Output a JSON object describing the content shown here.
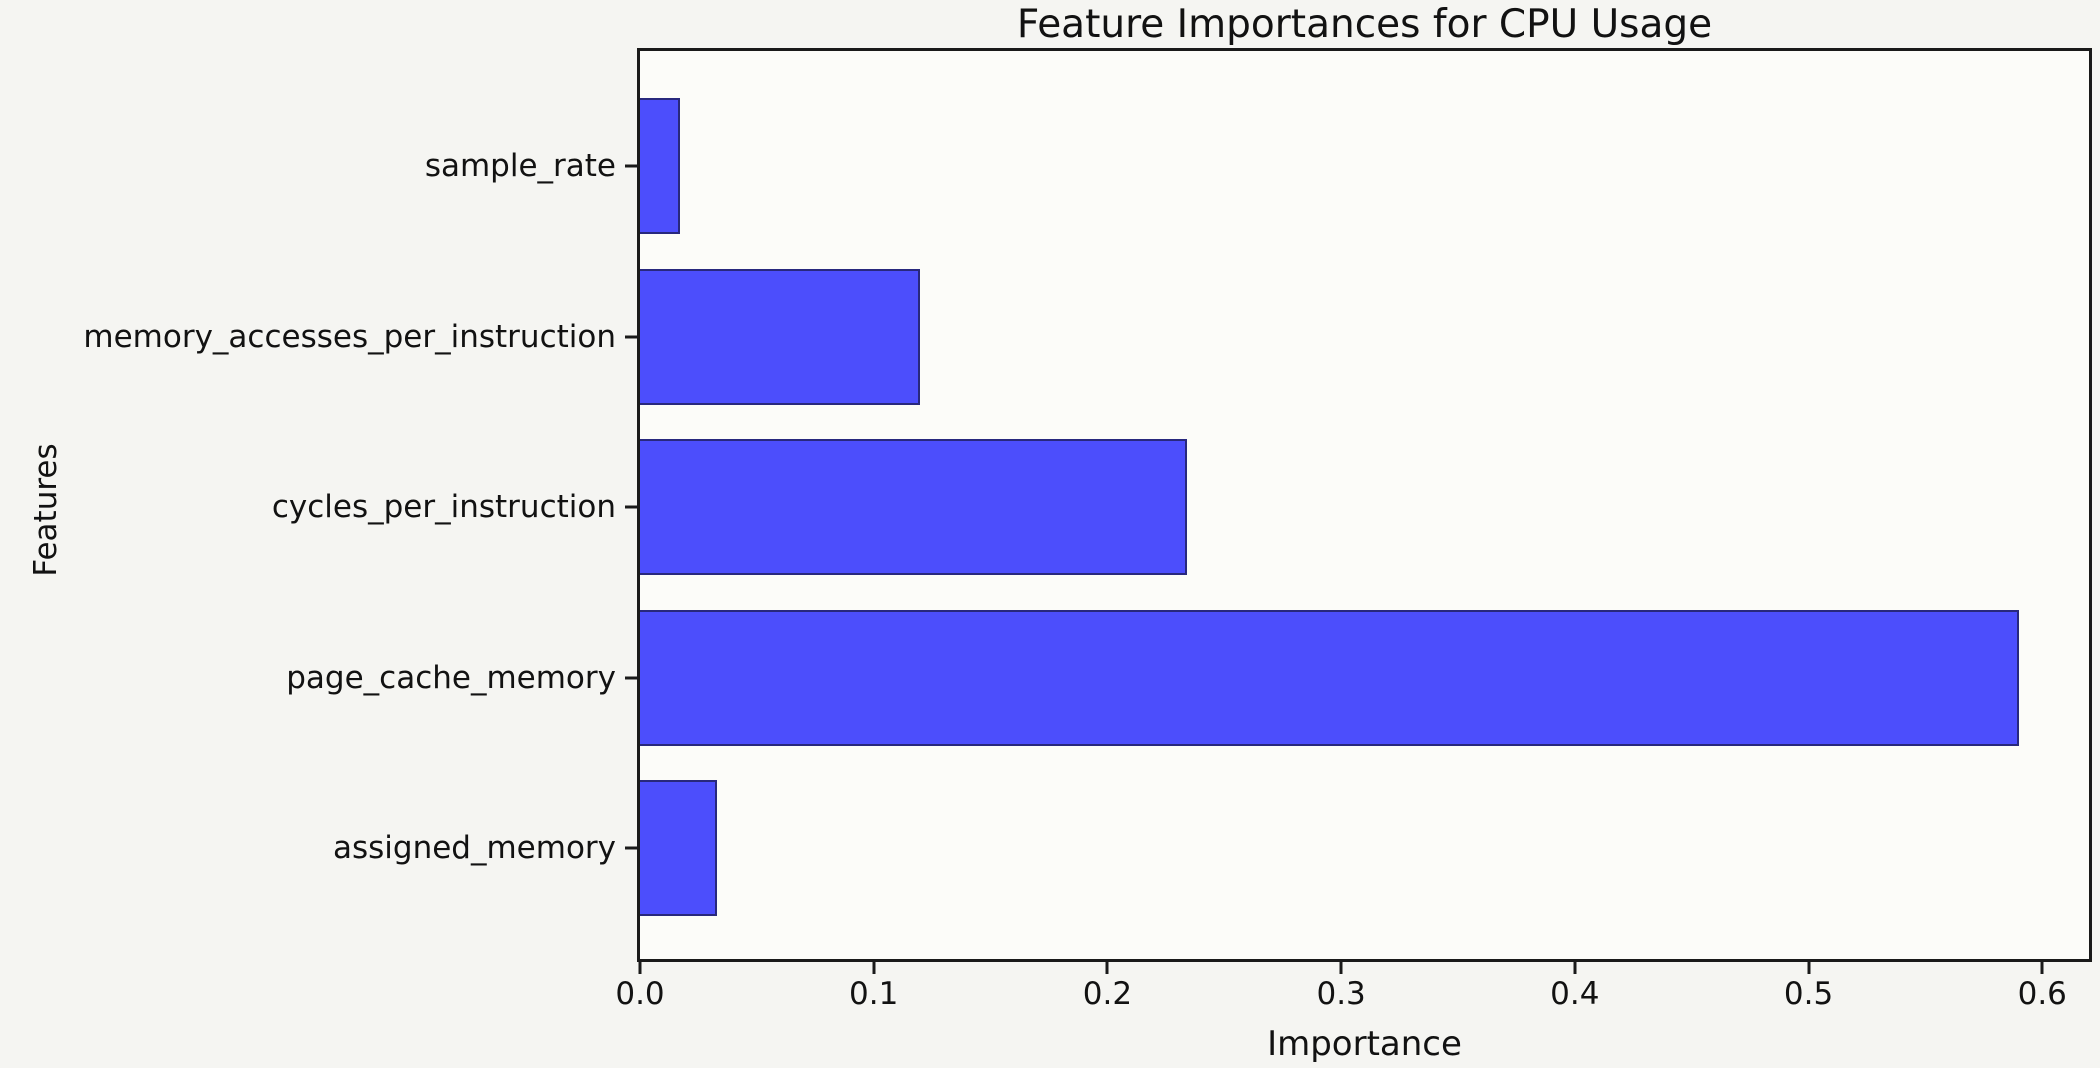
{
  "chart_data": {
    "type": "bar",
    "orientation": "horizontal",
    "title": "Feature Importances for CPU Usage",
    "xlabel": "Importance",
    "ylabel": "Features",
    "categories": [
      "sample_rate",
      "memory_accesses_per_instruction",
      "cycles_per_instruction",
      "page_cache_memory",
      "assigned_memory"
    ],
    "values": [
      0.017,
      0.12,
      0.234,
      0.59,
      0.033
    ],
    "category_order": "top-to-bottom",
    "xticks": [
      "0.0",
      "0.1",
      "0.2",
      "0.3",
      "0.4",
      "0.5",
      "0.6"
    ],
    "xtick_values": [
      0.0,
      0.1,
      0.2,
      0.3,
      0.4,
      0.5,
      0.6
    ],
    "xlim": [
      0,
      0.62
    ],
    "grid": false,
    "legend": false,
    "bar_color": "#4c4efc",
    "bar_edge_color": "#28287d",
    "spine_color": "#1a1a1a",
    "text_color": "#121212"
  }
}
